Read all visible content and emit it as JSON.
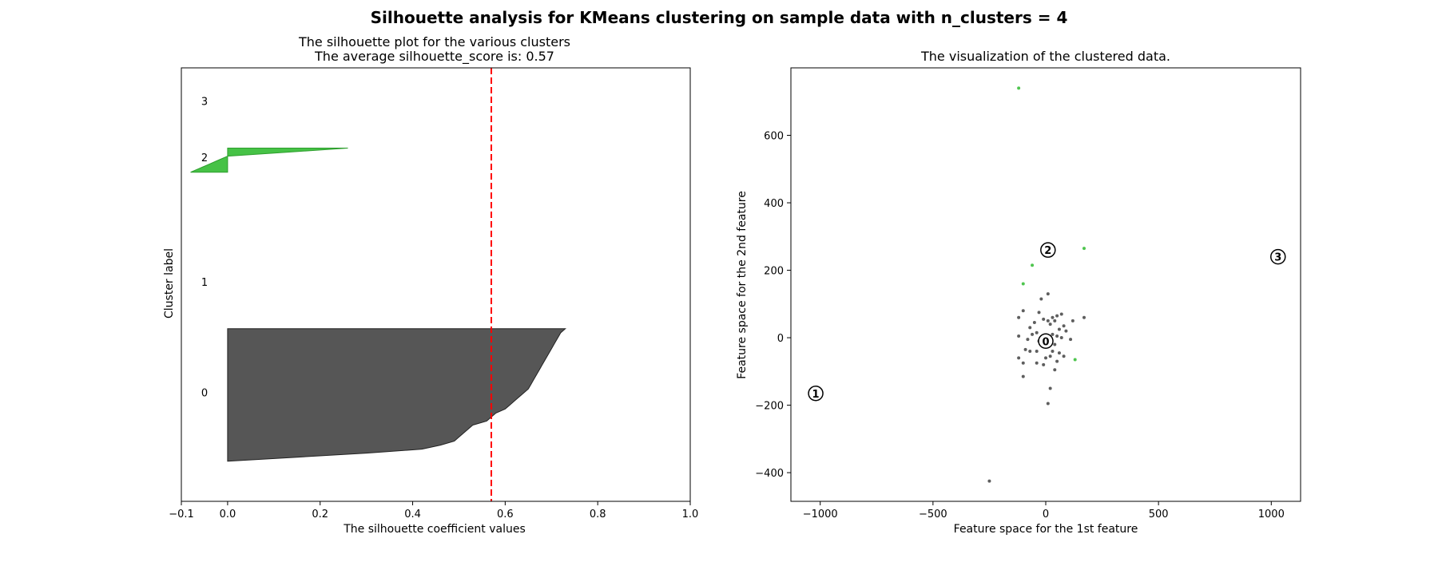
{
  "figure": {
    "suptitle": "Silhouette analysis for KMeans clustering on sample data with n_clusters = 4"
  },
  "chart_data": [
    {
      "type": "area",
      "title_line1": "The silhouette plot for the various clusters",
      "title_line2": "The average silhouette_score is: 0.57",
      "xlabel": "The silhouette coefficient values",
      "ylabel": "Cluster label",
      "xlim": [
        -0.1,
        1.0
      ],
      "ylim": [
        0,
        108
      ],
      "xticks": [
        -0.1,
        0.0,
        0.2,
        0.4,
        0.6,
        0.8,
        1.0
      ],
      "xtick_labels": [
        "−0.1",
        "0.0",
        "0.2",
        "0.4",
        "0.6",
        "0.8",
        "1.0"
      ],
      "yticks": [],
      "grid": false,
      "average_score": 0.57,
      "average_line_color": "#ff0000",
      "clusters": [
        {
          "label": "0",
          "color": "#4d4d4d",
          "y_lower": 10,
          "values": [
            0.0,
            0.15,
            0.3,
            0.42,
            0.46,
            0.49,
            0.5,
            0.51,
            0.52,
            0.53,
            0.56,
            0.57,
            0.58,
            0.6,
            0.61,
            0.62,
            0.63,
            0.64,
            0.65,
            0.655,
            0.66,
            0.665,
            0.67,
            0.675,
            0.68,
            0.685,
            0.69,
            0.695,
            0.7,
            0.705,
            0.71,
            0.715,
            0.72,
            0.73
          ]
        },
        {
          "label": "1",
          "color": "#1a1a1a",
          "y_lower": 54,
          "values": []
        },
        {
          "label": "2",
          "color": "#3cbf3c",
          "y_lower": 82,
          "values": [
            -0.08,
            -0.06,
            -0.04,
            -0.02,
            0.0,
            0.13,
            0.26
          ]
        },
        {
          "label": "3",
          "color": "#3cbf3c",
          "y_lower": 99,
          "values": []
        }
      ]
    },
    {
      "type": "scatter",
      "title": "The visualization of the clustered data.",
      "xlabel": "Feature space for the 1st feature",
      "ylabel": "Feature space for the 2nd feature",
      "xlim": [
        -1130,
        1130
      ],
      "ylim": [
        -485,
        800
      ],
      "xticks": [
        -1000,
        -500,
        0,
        500,
        1000
      ],
      "xtick_labels": [
        "−1000",
        "−500",
        "0",
        "500",
        "1000"
      ],
      "yticks": [
        -400,
        -200,
        0,
        200,
        400,
        600
      ],
      "ytick_labels": [
        "−400",
        "−200",
        "0",
        "200",
        "400",
        "600"
      ],
      "grid": false,
      "series": [
        {
          "cluster": "0",
          "color": "#4d4d4d",
          "points": [
            [
              10,
              130
            ],
            [
              -20,
              115
            ],
            [
              -100,
              80
            ],
            [
              -30,
              75
            ],
            [
              70,
              70
            ],
            [
              50,
              65
            ],
            [
              -120,
              60
            ],
            [
              30,
              60
            ],
            [
              -10,
              55
            ],
            [
              10,
              50
            ],
            [
              40,
              50
            ],
            [
              120,
              50
            ],
            [
              170,
              60
            ],
            [
              -50,
              45
            ],
            [
              20,
              40
            ],
            [
              80,
              35
            ],
            [
              -70,
              30
            ],
            [
              60,
              25
            ],
            [
              90,
              20
            ],
            [
              -40,
              15
            ],
            [
              -60,
              10
            ],
            [
              30,
              10
            ],
            [
              50,
              5
            ],
            [
              -120,
              5
            ],
            [
              -10,
              0
            ],
            [
              10,
              0
            ],
            [
              70,
              0
            ],
            [
              -80,
              -5
            ],
            [
              110,
              -5
            ],
            [
              -30,
              -10
            ],
            [
              20,
              -10
            ],
            [
              40,
              -20
            ],
            [
              -90,
              -35
            ],
            [
              -70,
              -40
            ],
            [
              -40,
              -40
            ],
            [
              30,
              -40
            ],
            [
              60,
              -45
            ],
            [
              80,
              -55
            ],
            [
              -120,
              -60
            ],
            [
              0,
              -60
            ],
            [
              20,
              -55
            ],
            [
              -100,
              -75
            ],
            [
              -40,
              -75
            ],
            [
              50,
              -70
            ],
            [
              -10,
              -80
            ],
            [
              40,
              -95
            ],
            [
              -100,
              -115
            ],
            [
              20,
              -150
            ],
            [
              10,
              -195
            ],
            [
              -250,
              -425
            ]
          ]
        },
        {
          "cluster": "2",
          "color": "#3cbf3c",
          "points": [
            [
              -120,
              740
            ],
            [
              170,
              265
            ],
            [
              -60,
              215
            ],
            [
              -100,
              160
            ],
            [
              130,
              -65
            ]
          ]
        }
      ],
      "centers": [
        {
          "label": "0",
          "x": 0,
          "y": -10
        },
        {
          "label": "1",
          "x": -1020,
          "y": -165
        },
        {
          "label": "2",
          "x": 10,
          "y": 260
        },
        {
          "label": "3",
          "x": 1030,
          "y": 240
        }
      ]
    }
  ]
}
